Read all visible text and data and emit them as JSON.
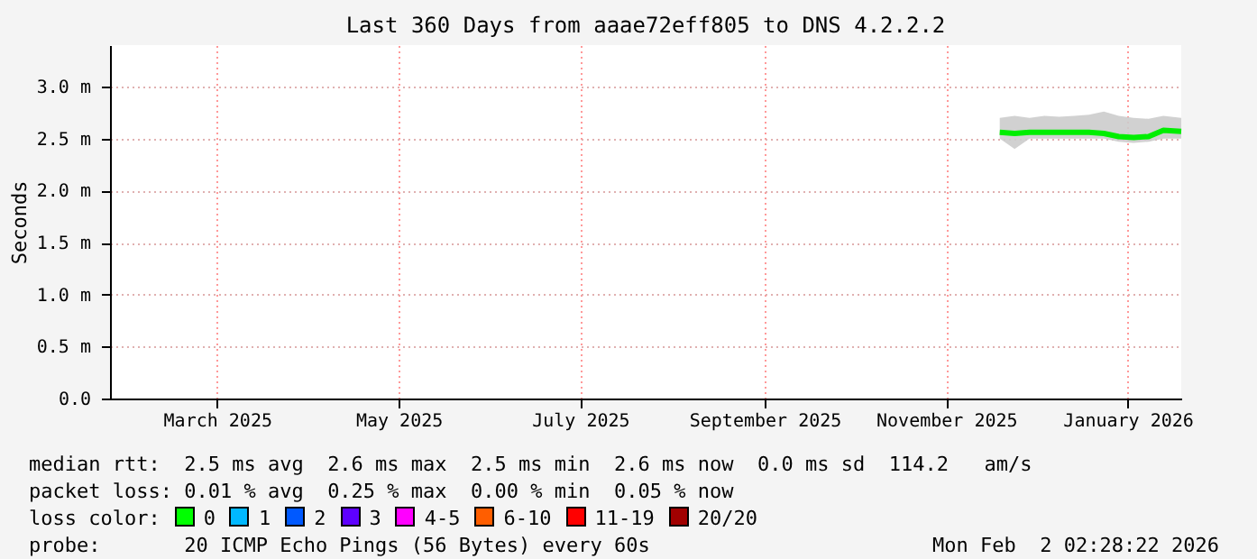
{
  "chart_data": {
    "type": "line",
    "title": "Last 360 Days from aaae72eff805 to DNS 4.2.2.2",
    "ylabel": "Seconds",
    "xlim": [
      "2025-02-07",
      "2026-02-02"
    ],
    "xticks": [
      {
        "value": "2025-03-15",
        "label": "March 2025"
      },
      {
        "value": "2025-05-15",
        "label": "May 2025"
      },
      {
        "value": "2025-07-15",
        "label": "July 2025"
      },
      {
        "value": "2025-09-15",
        "label": "September 2025"
      },
      {
        "value": "2025-11-15",
        "label": "November 2025"
      },
      {
        "value": "2026-01-15",
        "label": "January 2026"
      }
    ],
    "ylim": [
      0,
      3.4
    ],
    "yticks": [
      {
        "value": 0,
        "label": "0.0"
      },
      {
        "value": 0.5,
        "label": "0.5 m"
      },
      {
        "value": 1,
        "label": "1.0 m"
      },
      {
        "value": 1.5,
        "label": "1.5 m"
      },
      {
        "value": 2,
        "label": "2.0 m"
      },
      {
        "value": 2.5,
        "label": "2.5 m"
      },
      {
        "value": 3,
        "label": "3.0 m"
      }
    ],
    "grid": true,
    "series": [
      {
        "color": "#00ee00",
        "x": [
          "2025-12-03",
          "2025-12-08",
          "2025-12-13",
          "2025-12-18",
          "2025-12-23",
          "2025-12-28",
          "2026-01-02",
          "2026-01-07",
          "2026-01-12",
          "2026-01-17",
          "2026-01-22",
          "2026-01-27",
          "2026-02-02"
        ],
        "values": [
          2.56,
          2.55,
          2.56,
          2.56,
          2.56,
          2.56,
          2.56,
          2.55,
          2.52,
          2.51,
          2.52,
          2.58,
          2.57
        ],
        "lower": [
          2.5,
          2.4,
          2.5,
          2.5,
          2.5,
          2.5,
          2.5,
          2.5,
          2.47,
          2.46,
          2.47,
          2.5,
          2.5
        ],
        "upper": [
          2.7,
          2.72,
          2.7,
          2.72,
          2.71,
          2.72,
          2.73,
          2.76,
          2.72,
          2.7,
          2.69,
          2.72,
          2.7
        ]
      }
    ],
    "annotations": [
      "median rtt:  2.5 ms avg  2.6 ms max  2.5 ms min  2.6 ms now  0.0 ms sd  114.2   am/s",
      "packet loss: 0.01 % avg  0.25 % max  0.00 % min  0.05 % now",
      "loss color:",
      "0",
      "1",
      "2",
      "3",
      "4-5",
      "6-10",
      "11-19",
      "20/20",
      "probe:       20 ICMP Echo Pings (56 Bytes) every 60s",
      "Mon Feb  2 02:28:22 2026"
    ]
  }
}
